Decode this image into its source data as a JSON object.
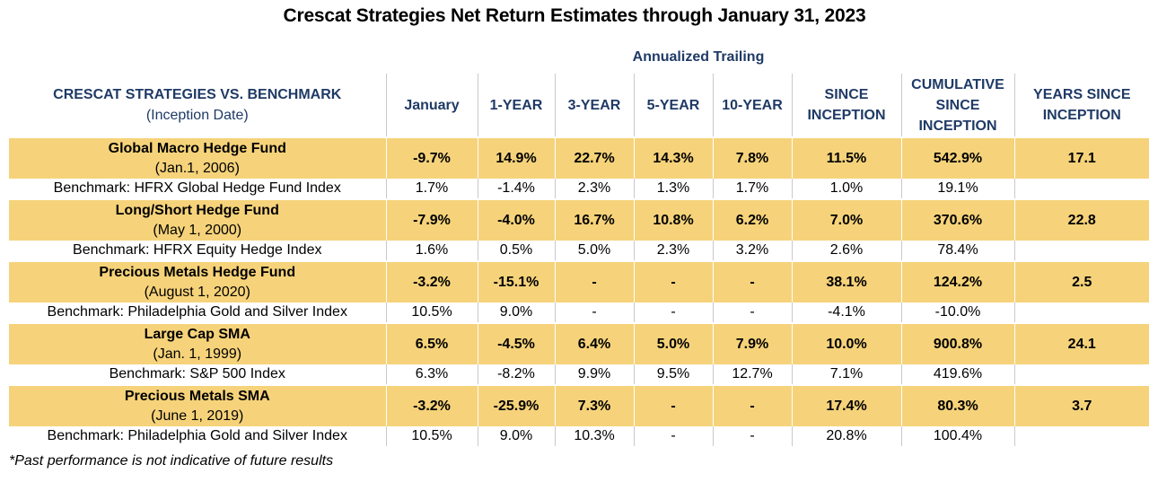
{
  "chart_data": {
    "type": "table",
    "title": "Crescat Strategies Net Return Estimates through January 31, 2023",
    "group_header": "Annualized Trailing",
    "columns": {
      "strategy": {
        "line1": "CRESCAT STRATEGIES VS. BENCHMARK",
        "line2": "(Inception Date)"
      },
      "january": "January",
      "one_year": "1-YEAR",
      "three_year": "3-YEAR",
      "five_year": "5-YEAR",
      "ten_year": "10-YEAR",
      "since_inception": {
        "line1": "SINCE",
        "line2": "INCEPTION"
      },
      "cumulative": {
        "line1": "CUMULATIVE",
        "line2": "SINCE",
        "line3": "INCEPTION"
      },
      "years_since": {
        "line1": "YEARS SINCE",
        "line2": "INCEPTION"
      }
    },
    "rows": [
      {
        "fund": {
          "name": "Global Macro Hedge Fund",
          "date": "(Jan.1, 2006)",
          "values": [
            "-9.7%",
            "14.9%",
            "22.7%",
            "14.3%",
            "7.8%",
            "11.5%",
            "542.9%",
            "17.1"
          ]
        },
        "benchmark": {
          "name": "Benchmark: HFRX Global Hedge Fund Index",
          "values": [
            "1.7%",
            "-1.4%",
            "2.3%",
            "1.3%",
            "1.7%",
            "1.0%",
            "19.1%",
            ""
          ]
        }
      },
      {
        "fund": {
          "name": "Long/Short Hedge Fund",
          "date": "(May 1, 2000)",
          "values": [
            "-7.9%",
            "-4.0%",
            "16.7%",
            "10.8%",
            "6.2%",
            "7.0%",
            "370.6%",
            "22.8"
          ]
        },
        "benchmark": {
          "name": "Benchmark: HFRX Equity Hedge Index",
          "values": [
            "1.6%",
            "0.5%",
            "5.0%",
            "2.3%",
            "3.2%",
            "2.6%",
            "78.4%",
            ""
          ]
        }
      },
      {
        "fund": {
          "name": "Precious Metals Hedge Fund",
          "date": "(August 1, 2020)",
          "values": [
            "-3.2%",
            "-15.1%",
            "-",
            "-",
            "-",
            "38.1%",
            "124.2%",
            "2.5"
          ]
        },
        "benchmark": {
          "name": "Benchmark: Philadelphia Gold and Silver Index",
          "values": [
            "10.5%",
            "9.0%",
            "-",
            "-",
            "-",
            "-4.1%",
            "-10.0%",
            ""
          ]
        }
      },
      {
        "fund": {
          "name": "Large Cap SMA",
          "date": "(Jan. 1, 1999)",
          "values": [
            "6.5%",
            "-4.5%",
            "6.4%",
            "5.0%",
            "7.9%",
            "10.0%",
            "900.8%",
            "24.1"
          ]
        },
        "benchmark": {
          "name": "Benchmark: S&P 500 Index",
          "values": [
            "6.3%",
            "-8.2%",
            "9.9%",
            "9.5%",
            "12.7%",
            "7.1%",
            "419.6%",
            ""
          ]
        }
      },
      {
        "fund": {
          "name": "Precious Metals SMA",
          "date": "(June 1, 2019)",
          "values": [
            "-3.2%",
            "-25.9%",
            "7.3%",
            "-",
            "-",
            "17.4%",
            "80.3%",
            "3.7"
          ]
        },
        "benchmark": {
          "name": "Benchmark: Philadelphia Gold and Silver Index",
          "values": [
            "10.5%",
            "9.0%",
            "10.3%",
            "-",
            "-",
            "20.8%",
            "100.4%",
            ""
          ]
        }
      }
    ],
    "footnote": "*Past performance is not indicative of future results",
    "colors": {
      "fund_row": "#f6d37a",
      "header_text": "#1f3a66"
    }
  }
}
